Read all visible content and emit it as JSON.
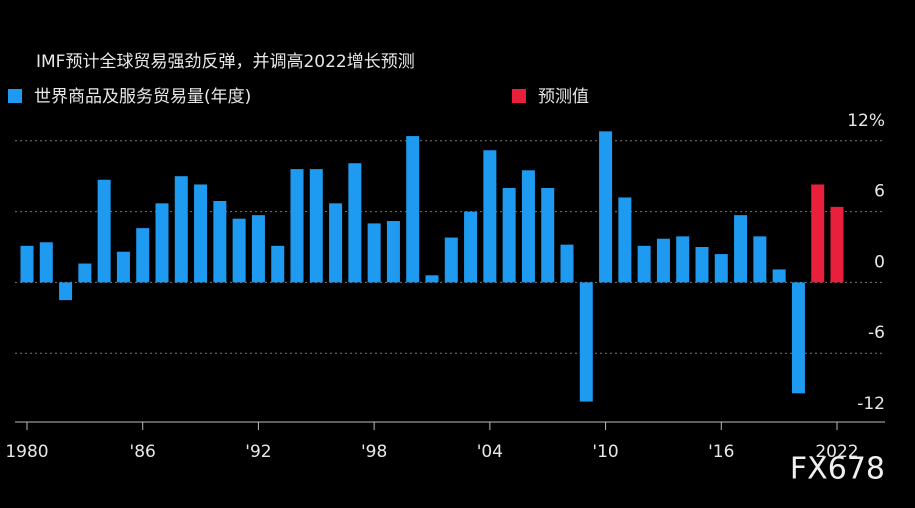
{
  "chart_data": {
    "type": "bar",
    "title": "IMF预计全球贸易强劲反弹，并调高2022增长预测",
    "watermark": "FX678",
    "categories": [
      "1980",
      null,
      null,
      null,
      null,
      null,
      "'86",
      null,
      null,
      null,
      null,
      null,
      "'92",
      null,
      null,
      null,
      null,
      null,
      "'98",
      null,
      null,
      null,
      null,
      null,
      "'04",
      null,
      null,
      null,
      null,
      null,
      "'10",
      null,
      null,
      null,
      null,
      null,
      "'16",
      null,
      null,
      null,
      null,
      null,
      "2022"
    ],
    "series": [
      {
        "name": "世界商品及服务贸易量(年度)",
        "color": "#1e9bf0",
        "values": [
          3.1,
          3.4,
          -1.5,
          1.6,
          8.7,
          2.6,
          4.6,
          6.7,
          9.0,
          8.3,
          6.9,
          5.4,
          5.7,
          3.1,
          9.6,
          9.6,
          6.7,
          10.1,
          5.0,
          5.2,
          12.4,
          0.6,
          3.8,
          6.0,
          11.2,
          8.0,
          9.5,
          8.0,
          3.2,
          -10.1,
          12.8,
          7.2,
          3.1,
          3.7,
          3.9,
          3.0,
          2.4,
          5.7,
          3.9,
          1.1,
          -9.4,
          null,
          null
        ]
      },
      {
        "name": "预测值",
        "color": "#e8203c",
        "values": [
          null,
          null,
          null,
          null,
          null,
          null,
          null,
          null,
          null,
          null,
          null,
          null,
          null,
          null,
          null,
          null,
          null,
          null,
          null,
          null,
          null,
          null,
          null,
          null,
          null,
          null,
          null,
          null,
          null,
          null,
          null,
          null,
          null,
          null,
          null,
          null,
          null,
          null,
          null,
          null,
          null,
          8.3,
          6.4
        ]
      }
    ],
    "ylim": [
      -12,
      13
    ],
    "yticks": [
      {
        "value": 12,
        "label": "12%"
      },
      6,
      0,
      -6,
      -12
    ],
    "grid": true
  }
}
